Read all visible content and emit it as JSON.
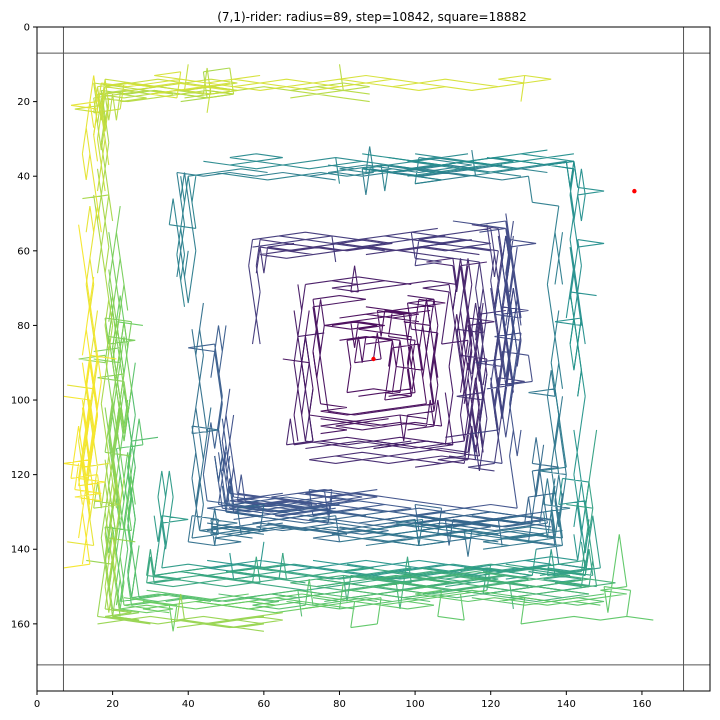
{
  "chart_data": {
    "type": "line",
    "title": "(7,1)-rider: radius=89, step=10842, square=18882",
    "xlabel": "",
    "ylabel": "",
    "xlim": [
      0,
      178
    ],
    "ylim": [
      178,
      0
    ],
    "y_inverted": true,
    "grid": false,
    "x_ticks": [
      0,
      20,
      40,
      60,
      80,
      100,
      120,
      140,
      160
    ],
    "y_ticks": [
      0,
      20,
      40,
      60,
      80,
      100,
      120,
      140,
      160
    ],
    "colormap": "viridis",
    "colormap_stops": [
      "#440154",
      "#3b528b",
      "#21918c",
      "#5ec962",
      "#fde725"
    ],
    "path": {
      "leaper": [
        7,
        1
      ],
      "center": [
        89,
        89
      ],
      "radius": 89,
      "steps": 10842,
      "color_by": "step index"
    },
    "start_point": {
      "x": 89,
      "y": 89,
      "color": "#ff0000"
    },
    "end_point": {
      "x": 158,
      "y": 44,
      "color": "#ff0000"
    },
    "reference_lines": {
      "vertical_x": [
        7,
        171
      ],
      "horizontal_y": [
        7,
        171
      ],
      "color": "#555555"
    }
  }
}
